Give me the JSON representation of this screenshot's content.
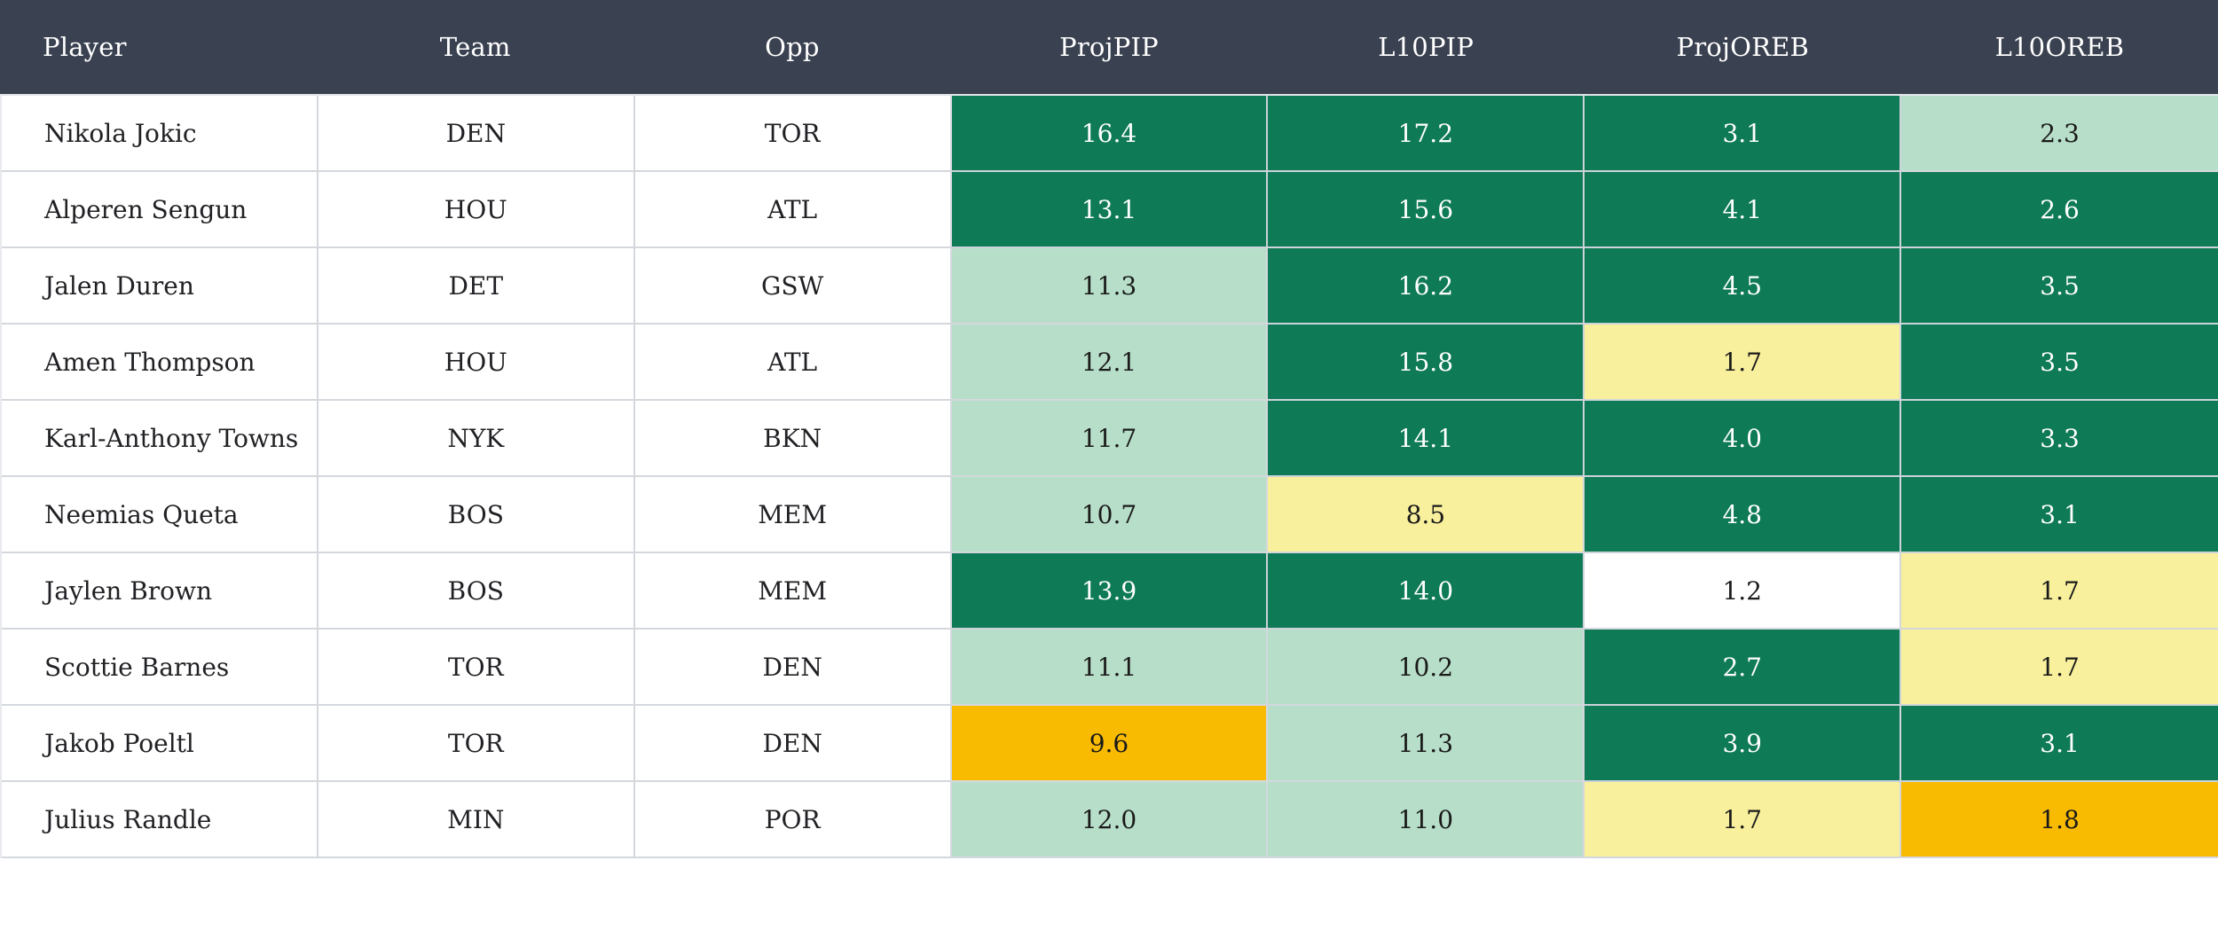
{
  "columns": [
    "Player",
    "Team",
    "Opp",
    "ProjPIP",
    "L10PIP",
    "ProjOREB",
    "L10OREB"
  ],
  "rows": [
    {
      "player": "Nikola Jokic",
      "team": "DEN",
      "opp": "TOR",
      "projpip": {
        "value": "16.4",
        "tone": "high"
      },
      "l10pip": {
        "value": "17.2",
        "tone": "high"
      },
      "projoreb": {
        "value": "3.1",
        "tone": "high"
      },
      "l10oreb": {
        "value": "2.3",
        "tone": "mid"
      }
    },
    {
      "player": "Alperen Sengun",
      "team": "HOU",
      "opp": "ATL",
      "projpip": {
        "value": "13.1",
        "tone": "high"
      },
      "l10pip": {
        "value": "15.6",
        "tone": "high"
      },
      "projoreb": {
        "value": "4.1",
        "tone": "high"
      },
      "l10oreb": {
        "value": "2.6",
        "tone": "high"
      }
    },
    {
      "player": "Jalen Duren",
      "team": "DET",
      "opp": "GSW",
      "projpip": {
        "value": "11.3",
        "tone": "mid"
      },
      "l10pip": {
        "value": "16.2",
        "tone": "high"
      },
      "projoreb": {
        "value": "4.5",
        "tone": "high"
      },
      "l10oreb": {
        "value": "3.5",
        "tone": "high"
      }
    },
    {
      "player": "Amen Thompson",
      "team": "HOU",
      "opp": "ATL",
      "projpip": {
        "value": "12.1",
        "tone": "mid"
      },
      "l10pip": {
        "value": "15.8",
        "tone": "high"
      },
      "projoreb": {
        "value": "1.7",
        "tone": "low"
      },
      "l10oreb": {
        "value": "3.5",
        "tone": "high"
      }
    },
    {
      "player": "Karl-Anthony Towns",
      "team": "NYK",
      "opp": "BKN",
      "projpip": {
        "value": "11.7",
        "tone": "mid"
      },
      "l10pip": {
        "value": "14.1",
        "tone": "high"
      },
      "projoreb": {
        "value": "4.0",
        "tone": "high"
      },
      "l10oreb": {
        "value": "3.3",
        "tone": "high"
      }
    },
    {
      "player": "Neemias Queta",
      "team": "BOS",
      "opp": "MEM",
      "projpip": {
        "value": "10.7",
        "tone": "mid"
      },
      "l10pip": {
        "value": "8.5",
        "tone": "low"
      },
      "projoreb": {
        "value": "4.8",
        "tone": "high"
      },
      "l10oreb": {
        "value": "3.1",
        "tone": "high"
      }
    },
    {
      "player": "Jaylen Brown",
      "team": "BOS",
      "opp": "MEM",
      "projpip": {
        "value": "13.9",
        "tone": "high"
      },
      "l10pip": {
        "value": "14.0",
        "tone": "high"
      },
      "projoreb": {
        "value": "1.2",
        "tone": "none"
      },
      "l10oreb": {
        "value": "1.7",
        "tone": "low"
      }
    },
    {
      "player": "Scottie Barnes",
      "team": "TOR",
      "opp": "DEN",
      "projpip": {
        "value": "11.1",
        "tone": "mid"
      },
      "l10pip": {
        "value": "10.2",
        "tone": "mid"
      },
      "projoreb": {
        "value": "2.7",
        "tone": "high"
      },
      "l10oreb": {
        "value": "1.7",
        "tone": "low"
      }
    },
    {
      "player": "Jakob Poeltl",
      "team": "TOR",
      "opp": "DEN",
      "projpip": {
        "value": "9.6",
        "tone": "lowest"
      },
      "l10pip": {
        "value": "11.3",
        "tone": "mid"
      },
      "projoreb": {
        "value": "3.9",
        "tone": "high"
      },
      "l10oreb": {
        "value": "3.1",
        "tone": "high"
      }
    },
    {
      "player": "Julius Randle",
      "team": "MIN",
      "opp": "POR",
      "projpip": {
        "value": "12.0",
        "tone": "mid"
      },
      "l10pip": {
        "value": "11.0",
        "tone": "mid"
      },
      "projoreb": {
        "value": "1.7",
        "tone": "low"
      },
      "l10oreb": {
        "value": "1.8",
        "tone": "lowest"
      }
    }
  ],
  "colors": {
    "header_bg": "#3a4150",
    "header_text": "#ffffff",
    "body_text": "#202124",
    "grid_line": "#d4d8dd",
    "tone_high": "#0e7a56",
    "tone_mid": "#b7dec9",
    "tone_low": "#f8f09d",
    "tone_lowest": "#f9bb02",
    "tone_none": "#ffffff"
  }
}
